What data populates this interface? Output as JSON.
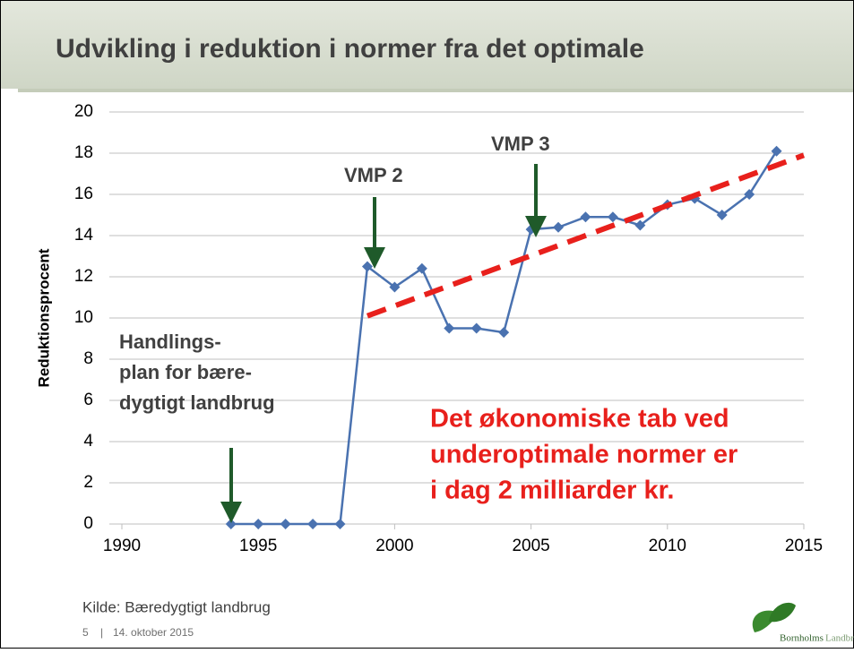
{
  "chart_data": {
    "type": "line",
    "title": "Udvikling i reduktion i normer fra det optimale",
    "y_label": "Reduktionsprocent",
    "xlim": [
      1990,
      2015
    ],
    "xticks": [
      1990,
      1995,
      2000,
      2005,
      2010,
      2015
    ],
    "ylim": [
      0,
      20
    ],
    "yticks": [
      0,
      2,
      4,
      6,
      8,
      10,
      12,
      14,
      16,
      18,
      20
    ],
    "grid": true,
    "series": [
      {
        "color": "#4a72b0",
        "x": [
          1994,
          1995,
          1996,
          1997,
          1998,
          1999,
          2000,
          2001,
          2002,
          2003,
          2004,
          2005,
          2006,
          2007,
          2008,
          2009,
          2010,
          2011,
          2012,
          2013,
          2014
        ],
        "values": [
          0,
          0,
          0,
          0,
          0,
          12.5,
          11.5,
          12.4,
          9.5,
          9.5,
          9.3,
          14.3,
          14.4,
          14.9,
          14.9,
          14.5,
          15.5,
          15.8,
          15.0,
          16.0,
          18.1
        ]
      },
      {
        "color": "#e8201c",
        "style": "dashed",
        "x": [
          1999,
          2015
        ],
        "values": [
          10.1,
          17.9
        ]
      }
    ],
    "annotations": {
      "vmp2": "VMP 2",
      "vmp3": "VMP 3",
      "handlingsplan": [
        "Handlings-",
        "plan for bære-",
        "dygtigt landbrug"
      ],
      "message": [
        "Det økonomiske tab ved",
        "underoptimale normer er",
        "i dag 2 milliarder kr."
      ]
    }
  },
  "footer": {
    "source": "Kilde: Bæredygtigt landbrug",
    "page": "5",
    "date": "14. oktober 2015",
    "logo_main": "Bornholms",
    "logo_sub": "Landbrug"
  }
}
